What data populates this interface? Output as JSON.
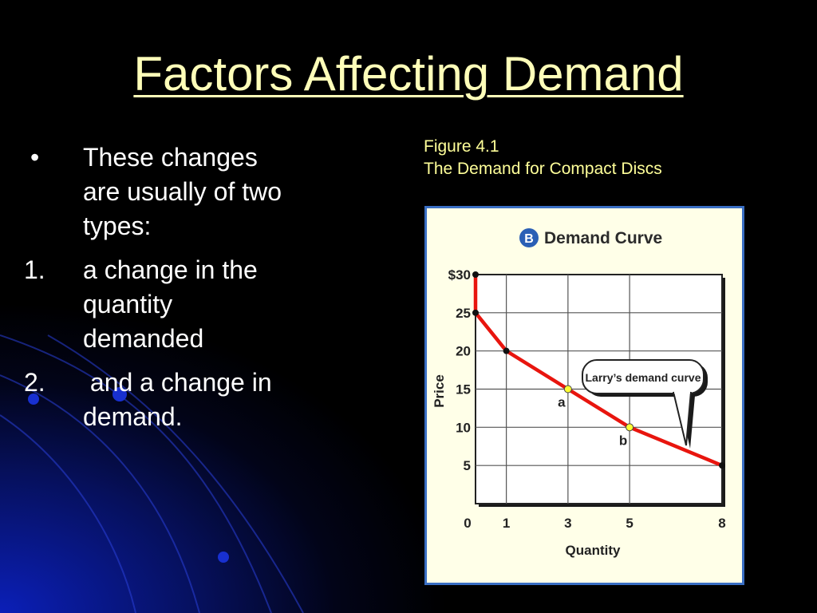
{
  "slide": {
    "title": "Factors Affecting Demand",
    "bullets": [
      {
        "marker": "•",
        "text": "These changes are usually of two types:"
      },
      {
        "marker": "1.",
        "text": "a change in the quantity demanded"
      },
      {
        "marker": "2.",
        "text": " and a change in demand."
      }
    ],
    "figure_number": "Figure 4.1",
    "figure_caption": "The Demand for Compact Discs"
  },
  "colors": {
    "title": "#FFFFB9",
    "caption": "#FFFF99",
    "panel_bg": "#FFFFE8",
    "panel_border": "#3A6FC4",
    "curve": "#E8150E",
    "point_highlight": "#FFFF33",
    "badge": "#2A5FB5"
  },
  "chart_data": {
    "type": "line",
    "badge": "B",
    "title": "Demand Curve",
    "xlabel": "Quantity",
    "ylabel": "Price",
    "xticks": [
      "0",
      "1",
      "3",
      "5",
      "8"
    ],
    "yticks": [
      "$30",
      "25",
      "20",
      "15",
      "10",
      "5"
    ],
    "series": [
      {
        "x": [
          0,
          0,
          1,
          3,
          5,
          8
        ],
        "y": [
          30,
          25,
          20,
          15,
          10,
          5
        ]
      }
    ],
    "points": [
      {
        "x": 0,
        "y": 30,
        "label": "",
        "highlight": false
      },
      {
        "x": 0,
        "y": 25,
        "label": "",
        "highlight": false
      },
      {
        "x": 1,
        "y": 20,
        "label": "",
        "highlight": false
      },
      {
        "x": 3,
        "y": 15,
        "label": "a",
        "highlight": true
      },
      {
        "x": 5,
        "y": 10,
        "label": "b",
        "highlight": true
      },
      {
        "x": 8,
        "y": 5,
        "label": "",
        "highlight": false
      }
    ],
    "annotation": "Larry’s demand curve",
    "grid": true
  }
}
